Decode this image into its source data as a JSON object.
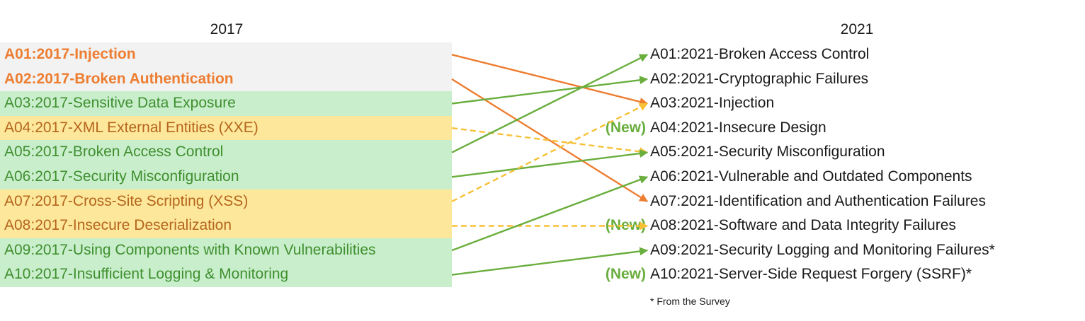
{
  "headings": {
    "left": "2017",
    "right": "2021"
  },
  "left_items": [
    {
      "label": "A01:2017-Injection",
      "bg": "gray",
      "text": "orange"
    },
    {
      "label": "A02:2017-Broken Authentication",
      "bg": "gray",
      "text": "orange"
    },
    {
      "label": "A03:2017-Sensitive Data Exposure",
      "bg": "green",
      "text": "green"
    },
    {
      "label": "A04:2017-XML External Entities (XXE)",
      "bg": "yellow",
      "text": "brown"
    },
    {
      "label": "A05:2017-Broken Access Control",
      "bg": "green",
      "text": "green"
    },
    {
      "label": "A06:2017-Security Misconfiguration",
      "bg": "green",
      "text": "green"
    },
    {
      "label": "A07:2017-Cross-Site Scripting (XSS)",
      "bg": "yellow",
      "text": "brown"
    },
    {
      "label": "A08:2017-Insecure Deserialization",
      "bg": "yellow",
      "text": "brown"
    },
    {
      "label": "A09:2017-Using Components with Known Vulnerabilities",
      "bg": "green",
      "text": "green"
    },
    {
      "label": "A10:2017-Insufficient Logging & Monitoring",
      "bg": "green",
      "text": "green"
    }
  ],
  "right_items": [
    {
      "label": "A01:2021-Broken Access Control",
      "badge": ""
    },
    {
      "label": "A02:2021-Cryptographic Failures",
      "badge": ""
    },
    {
      "label": "A03:2021-Injection",
      "badge": ""
    },
    {
      "label": "A04:2021-Insecure Design",
      "badge": "(New)"
    },
    {
      "label": "A05:2021-Security Misconfiguration",
      "badge": ""
    },
    {
      "label": "A06:2021-Vulnerable and Outdated Components",
      "badge": ""
    },
    {
      "label": "A07:2021-Identification and Authentication Failures",
      "badge": ""
    },
    {
      "label": "A08:2021-Software and Data Integrity Failures",
      "badge": "(New)"
    },
    {
      "label": "A09:2021-Security Logging and Monitoring Failures*",
      "badge": ""
    },
    {
      "label": "A10:2021-Server-Side Request Forgery (SSRF)*",
      "badge": "(New)"
    }
  ],
  "footnote": "* From the Survey",
  "mappings": [
    {
      "from": 1,
      "to": 3,
      "style": "solid",
      "color": "#ed7d31"
    },
    {
      "from": 2,
      "to": 7,
      "style": "solid",
      "color": "#ed7d31"
    },
    {
      "from": 3,
      "to": 2,
      "style": "solid",
      "color": "#6aae3e"
    },
    {
      "from": 4,
      "to": 5,
      "style": "dashed",
      "color": "#f7c137"
    },
    {
      "from": 5,
      "to": 1,
      "style": "solid",
      "color": "#6aae3e"
    },
    {
      "from": 6,
      "to": 5,
      "style": "solid",
      "color": "#6aae3e"
    },
    {
      "from": 7,
      "to": 3,
      "style": "dashed",
      "color": "#f7c137"
    },
    {
      "from": 8,
      "to": 8,
      "style": "dashed",
      "color": "#f7c137"
    },
    {
      "from": 9,
      "to": 6,
      "style": "solid",
      "color": "#6aae3e"
    },
    {
      "from": 10,
      "to": 9,
      "style": "solid",
      "color": "#6aae3e"
    }
  ]
}
